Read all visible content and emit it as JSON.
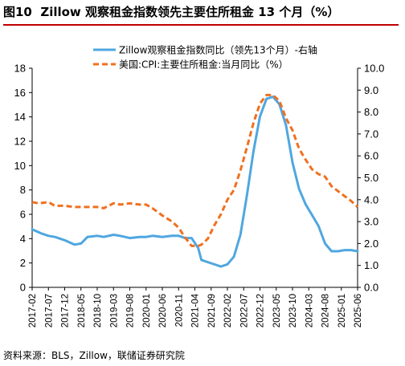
{
  "header": {
    "figure_label": "图10",
    "title": "Zillow 观察租金指数领先主要住所租金 13 个月（%）"
  },
  "footer": {
    "source": "资料来源：BLS，Zillow，联储证券研究院"
  },
  "colors": {
    "zillow": "#4fa7e0",
    "cpi": "#f07020",
    "axis": "#000000"
  },
  "chart_data": {
    "type": "line",
    "x_tick_labels": [
      "2017-02",
      "2017-07",
      "2017-12",
      "2018-05",
      "2018-10",
      "2019-03",
      "2019-08",
      "2020-01",
      "2020-06",
      "2020-11",
      "2021-04",
      "2021-09",
      "2022-02",
      "2022-07",
      "2022-12",
      "2023-05",
      "2023-10",
      "2024-03",
      "2024-08",
      "2025-01",
      "2025-06"
    ],
    "x_start": "2017-02",
    "x_end": "2025-06",
    "y_left": {
      "range": [
        0,
        18
      ],
      "ticks": [
        "0",
        "2",
        "4",
        "6",
        "8",
        "10",
        "12",
        "14",
        "16",
        "18"
      ]
    },
    "y_right": {
      "range": [
        0,
        10
      ],
      "ticks": [
        "0.0",
        "1.0",
        "2.0",
        "3.0",
        "4.0",
        "5.0",
        "6.0",
        "7.0",
        "8.0",
        "9.0",
        "10.0"
      ]
    },
    "legend_position": "top-center",
    "series": [
      {
        "name": "Zillow观察租金指数同比（领先13个月）-右轴",
        "axis": "right",
        "style": "solid",
        "points": [
          [
            "2017-02",
            2.65
          ],
          [
            "2017-05",
            2.45
          ],
          [
            "2017-07",
            2.35
          ],
          [
            "2017-09",
            2.3
          ],
          [
            "2017-12",
            2.15
          ],
          [
            "2018-03",
            1.95
          ],
          [
            "2018-05",
            2.0
          ],
          [
            "2018-07",
            2.3
          ],
          [
            "2018-10",
            2.35
          ],
          [
            "2018-12",
            2.3
          ],
          [
            "2019-03",
            2.4
          ],
          [
            "2019-05",
            2.35
          ],
          [
            "2019-08",
            2.25
          ],
          [
            "2019-11",
            2.3
          ],
          [
            "2020-01",
            2.3
          ],
          [
            "2020-03",
            2.35
          ],
          [
            "2020-06",
            2.3
          ],
          [
            "2020-09",
            2.35
          ],
          [
            "2020-11",
            2.35
          ],
          [
            "2021-01",
            2.25
          ],
          [
            "2021-03",
            2.25
          ],
          [
            "2021-05",
            1.8
          ],
          [
            "2021-06",
            1.25
          ],
          [
            "2021-09",
            1.1
          ],
          [
            "2021-12",
            0.95
          ],
          [
            "2022-02",
            1.05
          ],
          [
            "2022-04",
            1.4
          ],
          [
            "2022-06",
            2.4
          ],
          [
            "2022-08",
            4.2
          ],
          [
            "2022-10",
            6.2
          ],
          [
            "2022-12",
            7.8
          ],
          [
            "2023-02",
            8.6
          ],
          [
            "2023-04",
            8.7
          ],
          [
            "2023-06",
            8.35
          ],
          [
            "2023-08",
            7.4
          ],
          [
            "2023-10",
            5.7
          ],
          [
            "2023-12",
            4.5
          ],
          [
            "2024-02",
            3.8
          ],
          [
            "2024-04",
            3.3
          ],
          [
            "2024-06",
            2.8
          ],
          [
            "2024-08",
            2.0
          ],
          [
            "2024-10",
            1.65
          ],
          [
            "2024-12",
            1.65
          ],
          [
            "2025-02",
            1.7
          ],
          [
            "2025-04",
            1.7
          ],
          [
            "2025-06",
            1.65
          ]
        ]
      },
      {
        "name": "美国:CPI:主要住所租金:当月同比（%）",
        "axis": "left",
        "style": "dashed",
        "points": [
          [
            "2017-02",
            7.0
          ],
          [
            "2017-04",
            6.9
          ],
          [
            "2017-07",
            7.0
          ],
          [
            "2017-09",
            6.7
          ],
          [
            "2017-12",
            6.7
          ],
          [
            "2018-03",
            6.6
          ],
          [
            "2018-05",
            6.6
          ],
          [
            "2018-08",
            6.6
          ],
          [
            "2018-10",
            6.6
          ],
          [
            "2018-12",
            6.5
          ],
          [
            "2019-03",
            6.9
          ],
          [
            "2019-05",
            6.8
          ],
          [
            "2019-08",
            6.9
          ],
          [
            "2019-11",
            6.8
          ],
          [
            "2020-01",
            6.8
          ],
          [
            "2020-03",
            6.5
          ],
          [
            "2020-06",
            5.9
          ],
          [
            "2020-09",
            5.4
          ],
          [
            "2020-11",
            4.9
          ],
          [
            "2021-01",
            4.1
          ],
          [
            "2021-03",
            3.4
          ],
          [
            "2021-05",
            3.4
          ],
          [
            "2021-06",
            3.5
          ],
          [
            "2021-08",
            4.0
          ],
          [
            "2021-10",
            5.1
          ],
          [
            "2021-12",
            6.0
          ],
          [
            "2022-02",
            7.2
          ],
          [
            "2022-04",
            8.0
          ],
          [
            "2022-06",
            9.6
          ],
          [
            "2022-08",
            11.5
          ],
          [
            "2022-10",
            13.5
          ],
          [
            "2022-12",
            15.1
          ],
          [
            "2023-02",
            15.8
          ],
          [
            "2023-04",
            15.8
          ],
          [
            "2023-06",
            15.3
          ],
          [
            "2023-08",
            13.9
          ],
          [
            "2023-10",
            12.9
          ],
          [
            "2023-12",
            11.4
          ],
          [
            "2024-02",
            10.5
          ],
          [
            "2024-04",
            9.7
          ],
          [
            "2024-06",
            9.3
          ],
          [
            "2024-08",
            9.1
          ],
          [
            "2024-10",
            8.3
          ],
          [
            "2024-12",
            7.9
          ],
          [
            "2025-02",
            7.5
          ],
          [
            "2025-04",
            7.1
          ],
          [
            "2025-06",
            6.6
          ]
        ]
      }
    ]
  }
}
